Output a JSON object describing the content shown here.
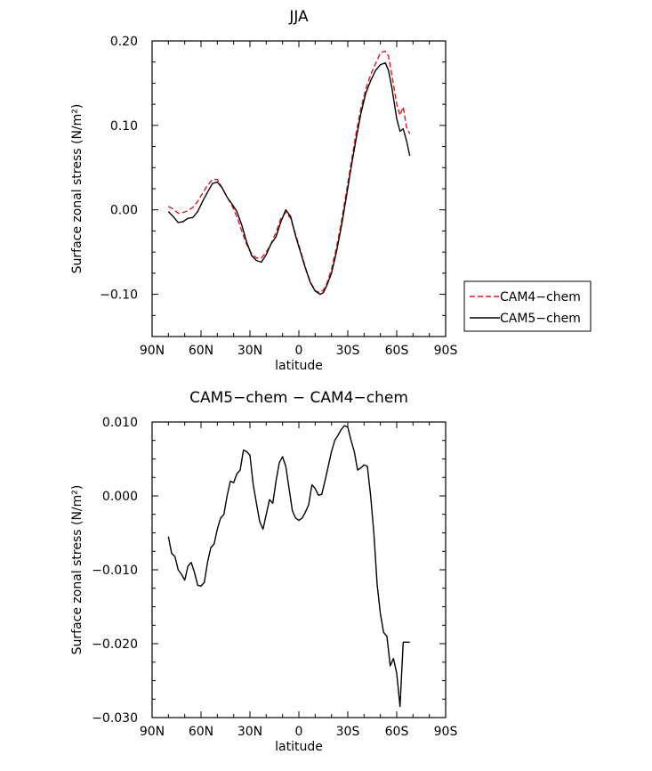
{
  "chart_data": [
    {
      "type": "line",
      "title": "JJA",
      "xlabel": "latitude",
      "ylabel": "Surface zonal stress (N/m²)",
      "xlim": [
        -90,
        90
      ],
      "ylim": [
        -0.15,
        0.2
      ],
      "x_ticks": [
        -90,
        -60,
        -30,
        0,
        30,
        60,
        90
      ],
      "x_tick_labels": [
        "90N",
        "60N",
        "30N",
        "0",
        "30S",
        "60S",
        "90S"
      ],
      "y_ticks": [
        0.2,
        0.1,
        0.0,
        -0.1
      ],
      "y_tick_labels": [
        "0.20",
        "0.10",
        "0.00",
        "−0.10"
      ],
      "legend_position": "outside-right",
      "series": [
        {
          "name": "CAM4−chem",
          "color": "#e8141b",
          "dash": "dashed",
          "x": [
            -80,
            -77,
            -74,
            -71,
            -68,
            -65,
            -62,
            -59,
            -56,
            -53,
            -50,
            -47,
            -44,
            -41,
            -38,
            -35,
            -32,
            -29,
            -26,
            -23,
            -20,
            -17,
            -14,
            -11,
            -8,
            -5,
            -2,
            1,
            4,
            7,
            10,
            13,
            15,
            17,
            20,
            23,
            26,
            29,
            32,
            35,
            38,
            41,
            44,
            47,
            50,
            53,
            55,
            57,
            60,
            62,
            64,
            66,
            68
          ],
          "y": [
            0.004,
            0.001,
            -0.004,
            -0.003,
            -0.001,
            0.003,
            0.01,
            0.02,
            0.029,
            0.036,
            0.036,
            0.026,
            0.015,
            0.005,
            -0.008,
            -0.025,
            -0.041,
            -0.052,
            -0.057,
            -0.057,
            -0.05,
            -0.04,
            -0.027,
            -0.01,
            -0.003,
            -0.01,
            -0.029,
            -0.048,
            -0.068,
            -0.085,
            -0.096,
            -0.098,
            -0.095,
            -0.088,
            -0.07,
            -0.045,
            -0.015,
            0.02,
            0.055,
            0.09,
            0.12,
            0.143,
            0.16,
            0.173,
            0.186,
            0.188,
            0.182,
            0.16,
            0.125,
            0.112,
            0.122,
            0.098,
            0.09
          ]
        },
        {
          "name": "CAM5−chem",
          "color": "#000000",
          "dash": "solid",
          "x": [
            -80,
            -77,
            -74,
            -71,
            -68,
            -65,
            -62,
            -59,
            -56,
            -53,
            -50,
            -47,
            -44,
            -41,
            -38,
            -35,
            -32,
            -29,
            -26,
            -23,
            -20,
            -17,
            -14,
            -11,
            -8,
            -5,
            -2,
            1,
            4,
            7,
            10,
            13,
            15,
            17,
            20,
            23,
            26,
            29,
            32,
            35,
            38,
            41,
            44,
            47,
            50,
            53,
            55,
            57,
            60,
            62,
            64,
            66,
            68
          ],
          "y": [
            -0.002,
            -0.008,
            -0.015,
            -0.014,
            -0.01,
            -0.009,
            -0.002,
            0.01,
            0.021,
            0.031,
            0.033,
            0.026,
            0.015,
            0.007,
            -0.002,
            -0.018,
            -0.038,
            -0.054,
            -0.06,
            -0.062,
            -0.053,
            -0.04,
            -0.032,
            -0.014,
            0.0,
            -0.008,
            -0.031,
            -0.05,
            -0.069,
            -0.086,
            -0.096,
            -0.1,
            -0.098,
            -0.09,
            -0.075,
            -0.05,
            -0.02,
            0.014,
            0.05,
            0.083,
            0.114,
            0.138,
            0.153,
            0.165,
            0.172,
            0.174,
            0.165,
            0.145,
            0.108,
            0.093,
            0.096,
            0.082,
            0.064
          ]
        }
      ]
    },
    {
      "type": "line",
      "title": "CAM5−chem − CAM4−chem",
      "xlabel": "latitude",
      "ylabel": "Surface zonal stress (N/m²)",
      "xlim": [
        -90,
        90
      ],
      "ylim": [
        -0.03,
        0.01
      ],
      "x_ticks": [
        -90,
        -60,
        -30,
        0,
        30,
        60,
        90
      ],
      "x_tick_labels": [
        "90N",
        "60N",
        "30N",
        "0",
        "30S",
        "60S",
        "90S"
      ],
      "y_ticks": [
        0.01,
        0.0,
        -0.01,
        -0.02,
        -0.03
      ],
      "y_tick_labels": [
        "0.010",
        "0.000",
        "−0.010",
        "−0.020",
        "−0.030"
      ],
      "series": [
        {
          "color": "#000000",
          "dash": "solid",
          "x": [
            -80,
            -78,
            -76,
            -74,
            -72,
            -70,
            -68,
            -66,
            -64,
            -62,
            -60,
            -58,
            -56,
            -54,
            -52,
            -50,
            -48,
            -46,
            -44,
            -42,
            -40,
            -38,
            -36,
            -34,
            -32,
            -30,
            -28,
            -26,
            -24,
            -22,
            -20,
            -18,
            -16,
            -14,
            -12,
            -10,
            -8,
            -6,
            -4,
            -2,
            0,
            2,
            4,
            6,
            8,
            10,
            12,
            14,
            16,
            18,
            20,
            22,
            24,
            26,
            28,
            30,
            32,
            34,
            36,
            38,
            40,
            42,
            44,
            46,
            48,
            50,
            52,
            54,
            56,
            58,
            60,
            62,
            64,
            66,
            68
          ],
          "y": [
            -0.0055,
            -0.0078,
            -0.0082,
            -0.01,
            -0.0106,
            -0.0114,
            -0.0095,
            -0.009,
            -0.0104,
            -0.0121,
            -0.0122,
            -0.0117,
            -0.009,
            -0.007,
            -0.0065,
            -0.0045,
            -0.003,
            -0.0025,
            0.0,
            0.002,
            0.0018,
            0.003,
            0.0035,
            0.0062,
            0.006,
            0.0055,
            0.0015,
            -0.001,
            -0.0035,
            -0.0045,
            -0.0025,
            -0.0005,
            -0.001,
            0.002,
            0.0045,
            0.0053,
            0.004,
            0.001,
            -0.002,
            -0.003,
            -0.0033,
            -0.003,
            -0.0022,
            -0.0012,
            0.0015,
            0.001,
            0.0001,
            0.0002,
            0.002,
            0.004,
            0.006,
            0.0075,
            0.0082,
            0.009,
            0.0095,
            0.0093,
            0.0075,
            0.006,
            0.0035,
            0.0038,
            0.0042,
            0.004,
            0.0,
            -0.005,
            -0.012,
            -0.016,
            -0.0185,
            -0.019,
            -0.023,
            -0.022,
            -0.024,
            -0.0285,
            -0.0198,
            -0.0198,
            -0.0198
          ]
        }
      ]
    }
  ]
}
